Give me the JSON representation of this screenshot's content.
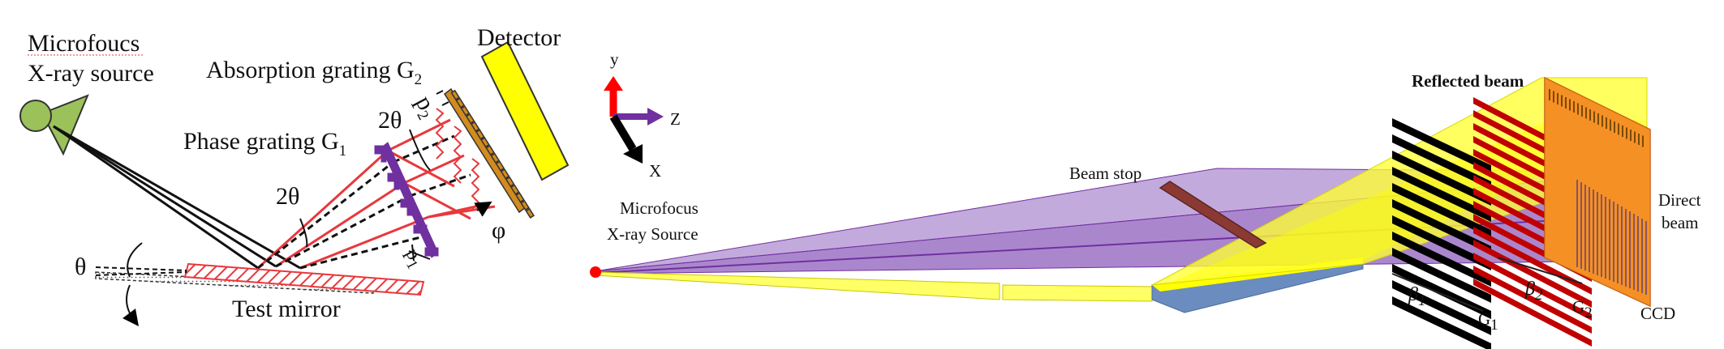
{
  "left_panel": {
    "source_label_line1": "Microfoucs",
    "source_label_line2": "X-ray source",
    "detector_label": "Detector",
    "g2_label": "Absorption grating G",
    "g2_sub": "2",
    "g1_label": "Phase grating G",
    "g1_sub": "1",
    "two_theta_upper": "2θ",
    "two_theta_lower": "2θ",
    "theta": "θ",
    "phi": "φ",
    "p2": "p",
    "p2_sub": "2",
    "p1": "p",
    "p1_sub": "1",
    "mirror_label": "Test mirror"
  },
  "axes": {
    "y": "y",
    "z": "Z",
    "x": "X",
    "colors": {
      "y": "#ff0000",
      "z": "#7030a0",
      "x": "#000000"
    }
  },
  "right_panel": {
    "source_line1": "Microfocus",
    "source_line2": "X-ray Source",
    "beam_stop": "Beam stop",
    "reflected_beam": "Reflected beam",
    "direct_beam_line1": "Direct",
    "direct_beam_line2": "beam",
    "beta1": "β",
    "beta1_sub": "1",
    "beta2": "β",
    "beta2_sub": "2",
    "g1": "G",
    "g1_sub": "1",
    "g2": "G",
    "g2_sub": "2",
    "ccd": "CCD"
  },
  "colors": {
    "purple_beam": "#9b72c4",
    "yellow_beam": "#ffff33",
    "mirror_red": "#e8383d",
    "detector_yellow": "#ffff00",
    "grating_purple": "#7030a0",
    "ccd_orange": "#f08020",
    "beam_stop": "#8b3a33",
    "source_green": "#9bc25a"
  }
}
